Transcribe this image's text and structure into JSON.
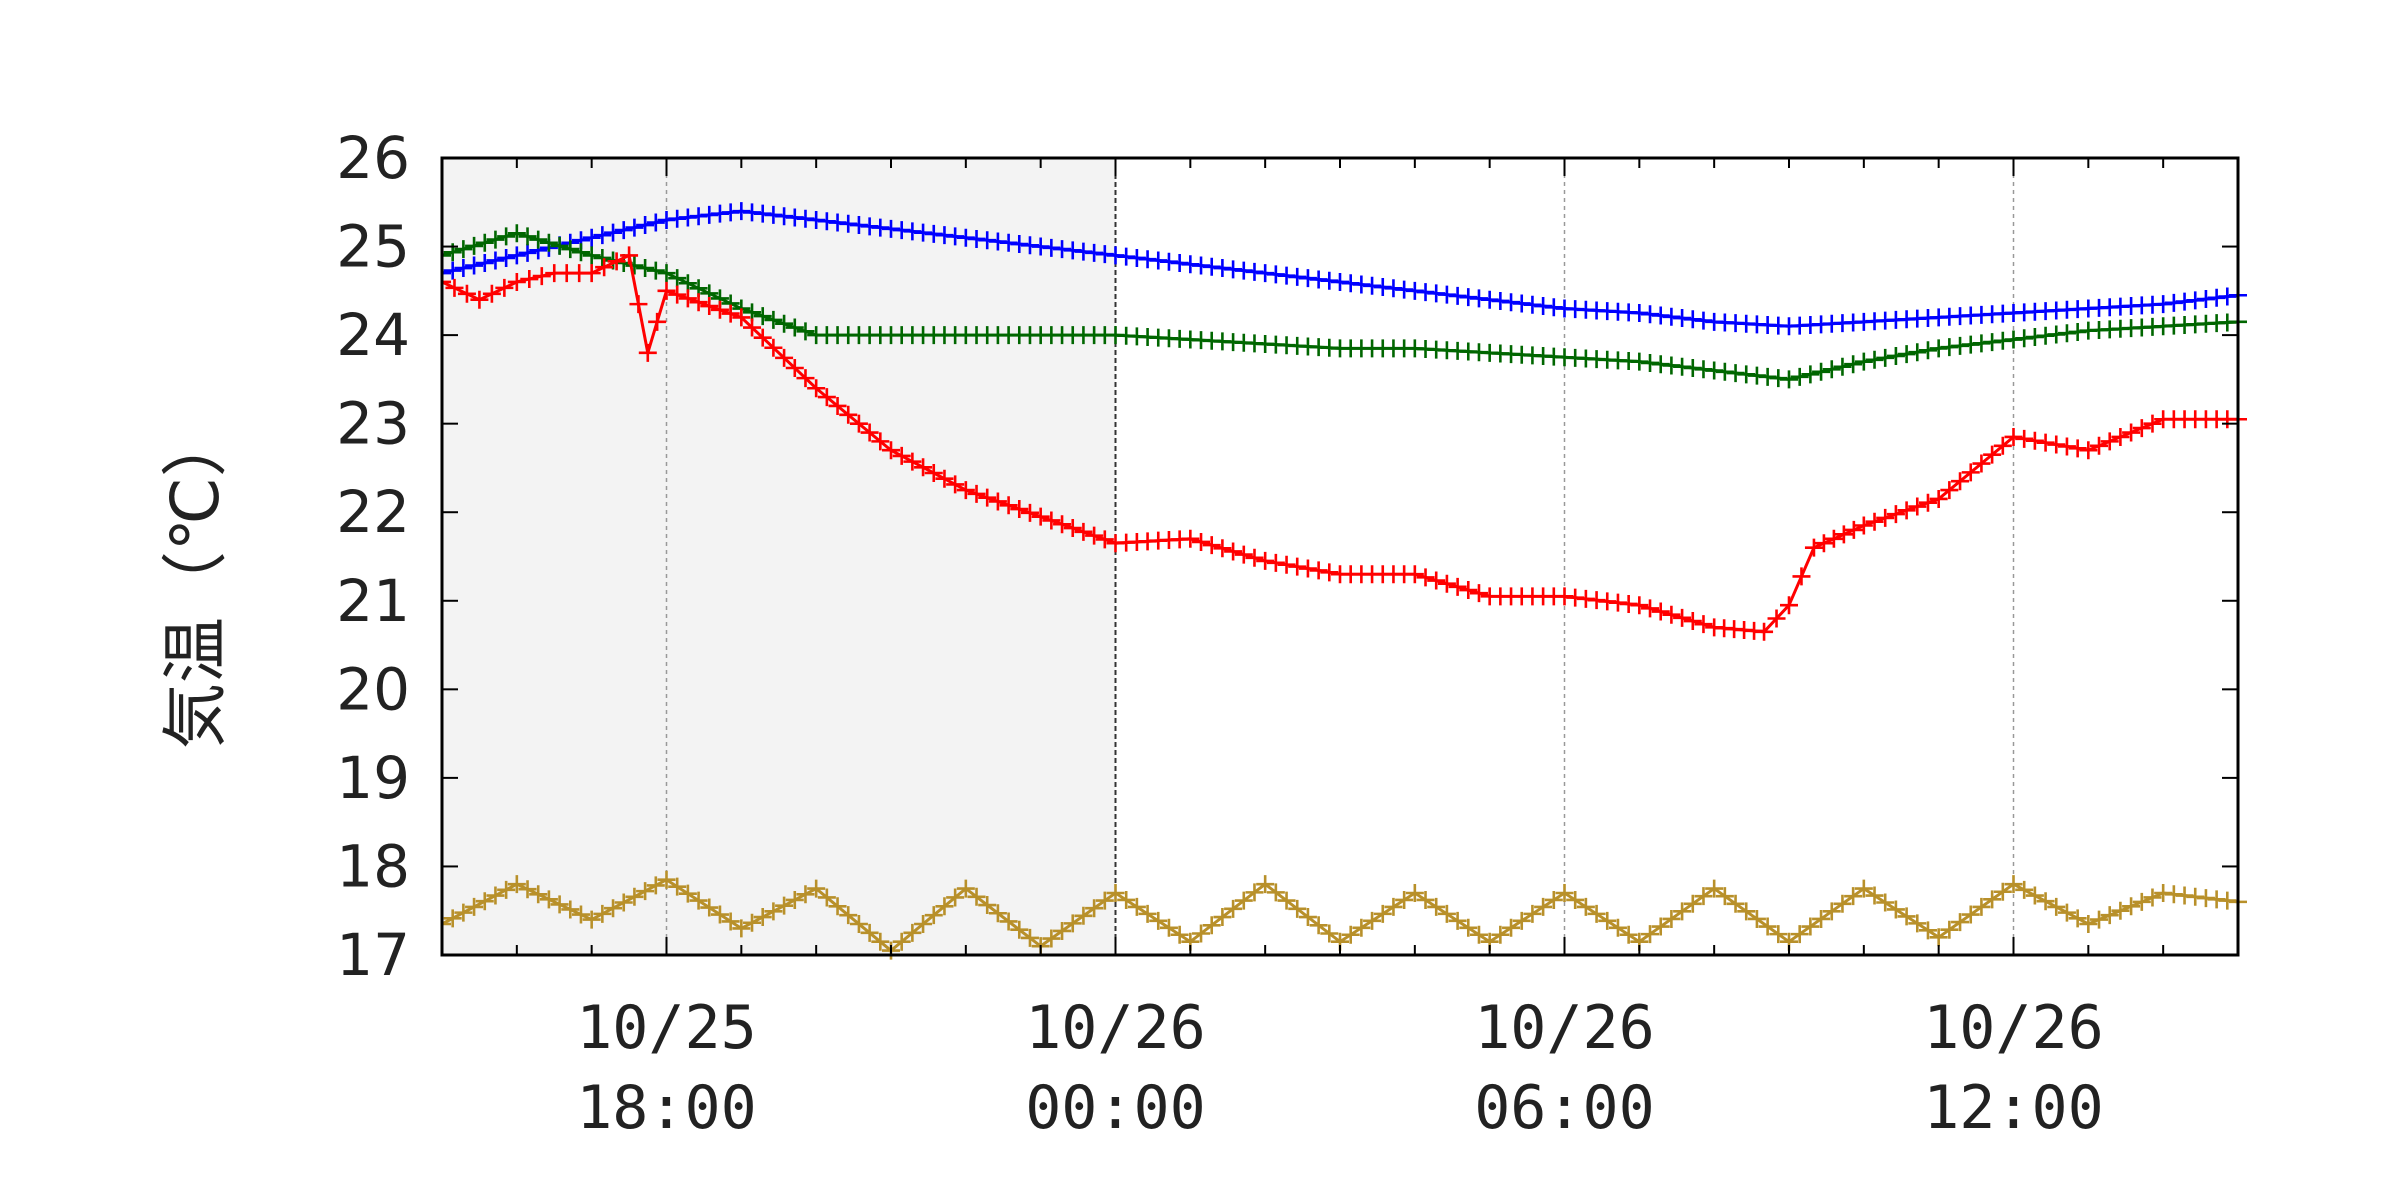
{
  "chart_data": {
    "type": "line",
    "title": "",
    "xlabel": "",
    "ylabel": "気温（℃）",
    "ylim": [
      17,
      26
    ],
    "yticks": [
      17,
      18,
      19,
      20,
      21,
      22,
      23,
      24,
      25,
      26
    ],
    "xlim": [
      "10/25 15:00",
      "10/26 15:00"
    ],
    "xticks": [
      {
        "value": "10/25 18:00",
        "line1": "10/25",
        "line2": "18:00"
      },
      {
        "value": "10/26 00:00",
        "line1": "10/26",
        "line2": "00:00"
      },
      {
        "value": "10/26 06:00",
        "line1": "10/26",
        "line2": "06:00"
      },
      {
        "value": "10/26 12:00",
        "line1": "10/26",
        "line2": "12:00"
      }
    ],
    "grid": true,
    "night_shading": {
      "from": "10/25 15:00",
      "to": "10/26 00:00",
      "color": "#f3f3f3"
    },
    "marker": "plus",
    "series": [
      {
        "color": "#0000ff",
        "points": [
          [
            "10/25 15:00",
            24.7
          ],
          [
            "10/25 16:00",
            24.9
          ],
          [
            "10/25 17:00",
            25.1
          ],
          [
            "10/25 18:00",
            25.3
          ],
          [
            "10/25 19:00",
            25.4
          ],
          [
            "10/25 20:00",
            25.3
          ],
          [
            "10/25 21:00",
            25.2
          ],
          [
            "10/25 22:00",
            25.1
          ],
          [
            "10/25 23:00",
            25.0
          ],
          [
            "10/26 00:00",
            24.9
          ],
          [
            "10/26 01:00",
            24.8
          ],
          [
            "10/26 02:00",
            24.7
          ],
          [
            "10/26 03:00",
            24.6
          ],
          [
            "10/26 04:00",
            24.5
          ],
          [
            "10/26 05:00",
            24.4
          ],
          [
            "10/26 06:00",
            24.3
          ],
          [
            "10/26 07:00",
            24.25
          ],
          [
            "10/26 08:00",
            24.15
          ],
          [
            "10/26 09:00",
            24.1
          ],
          [
            "10/26 10:00",
            24.15
          ],
          [
            "10/26 11:00",
            24.2
          ],
          [
            "10/26 12:00",
            24.25
          ],
          [
            "10/26 13:00",
            24.3
          ],
          [
            "10/26 14:00",
            24.35
          ],
          [
            "10/26 15:00",
            24.45
          ]
        ]
      },
      {
        "color": "#006600",
        "points": [
          [
            "10/25 15:00",
            24.9
          ],
          [
            "10/25 16:00",
            25.15
          ],
          [
            "10/25 17:00",
            24.9
          ],
          [
            "10/25 18:00",
            24.7
          ],
          [
            "10/25 19:00",
            24.3
          ],
          [
            "10/25 20:00",
            24.0
          ],
          [
            "10/25 21:00",
            24.0
          ],
          [
            "10/25 22:00",
            24.0
          ],
          [
            "10/25 23:00",
            24.0
          ],
          [
            "10/26 00:00",
            24.0
          ],
          [
            "10/26 01:00",
            23.95
          ],
          [
            "10/26 02:00",
            23.9
          ],
          [
            "10/26 03:00",
            23.85
          ],
          [
            "10/26 04:00",
            23.85
          ],
          [
            "10/26 05:00",
            23.8
          ],
          [
            "10/26 06:00",
            23.75
          ],
          [
            "10/26 07:00",
            23.7
          ],
          [
            "10/26 08:00",
            23.6
          ],
          [
            "10/26 09:00",
            23.5
          ],
          [
            "10/26 10:00",
            23.7
          ],
          [
            "10/26 11:00",
            23.85
          ],
          [
            "10/26 12:00",
            23.95
          ],
          [
            "10/26 13:00",
            24.05
          ],
          [
            "10/26 14:00",
            24.1
          ],
          [
            "10/26 15:00",
            24.15
          ]
        ]
      },
      {
        "color": "#ff0000",
        "points": [
          [
            "10/25 15:00",
            24.6
          ],
          [
            "10/25 15:30",
            24.4
          ],
          [
            "10/25 16:00",
            24.6
          ],
          [
            "10/25 16:30",
            24.7
          ],
          [
            "10/25 17:00",
            24.7
          ],
          [
            "10/25 17:30",
            24.9
          ],
          [
            "10/25 17:45",
            23.8
          ],
          [
            "10/25 18:00",
            24.5
          ],
          [
            "10/25 19:00",
            24.2
          ],
          [
            "10/25 20:00",
            23.4
          ],
          [
            "10/25 21:00",
            22.7
          ],
          [
            "10/25 22:00",
            22.25
          ],
          [
            "10/25 23:00",
            21.95
          ],
          [
            "10/26 00:00",
            21.65
          ],
          [
            "10/26 01:00",
            21.7
          ],
          [
            "10/26 02:00",
            21.45
          ],
          [
            "10/26 03:00",
            21.3
          ],
          [
            "10/26 04:00",
            21.3
          ],
          [
            "10/26 05:00",
            21.05
          ],
          [
            "10/26 06:00",
            21.05
          ],
          [
            "10/26 07:00",
            20.95
          ],
          [
            "10/26 08:00",
            20.7
          ],
          [
            "10/26 08:40",
            20.65
          ],
          [
            "10/26 09:00",
            20.95
          ],
          [
            "10/26 09:20",
            21.6
          ],
          [
            "10/26 10:00",
            21.85
          ],
          [
            "10/26 11:00",
            22.15
          ],
          [
            "10/26 12:00",
            22.85
          ],
          [
            "10/26 13:00",
            22.7
          ],
          [
            "10/26 14:00",
            23.05
          ],
          [
            "10/26 15:00",
            23.05
          ]
        ]
      },
      {
        "color": "#b8902a",
        "points": [
          [
            "10/25 15:00",
            17.35
          ],
          [
            "10/25 16:00",
            17.8
          ],
          [
            "10/25 17:00",
            17.4
          ],
          [
            "10/25 18:00",
            17.85
          ],
          [
            "10/25 19:00",
            17.3
          ],
          [
            "10/25 20:00",
            17.75
          ],
          [
            "10/25 21:00",
            17.05
          ],
          [
            "10/25 22:00",
            17.75
          ],
          [
            "10/25 23:00",
            17.1
          ],
          [
            "10/26 00:00",
            17.7
          ],
          [
            "10/26 01:00",
            17.15
          ],
          [
            "10/26 02:00",
            17.8
          ],
          [
            "10/26 03:00",
            17.15
          ],
          [
            "10/26 04:00",
            17.7
          ],
          [
            "10/26 05:00",
            17.15
          ],
          [
            "10/26 06:00",
            17.7
          ],
          [
            "10/26 07:00",
            17.15
          ],
          [
            "10/26 08:00",
            17.75
          ],
          [
            "10/26 09:00",
            17.15
          ],
          [
            "10/26 10:00",
            17.75
          ],
          [
            "10/26 11:00",
            17.2
          ],
          [
            "10/26 12:00",
            17.8
          ],
          [
            "10/26 13:00",
            17.35
          ],
          [
            "10/26 14:00",
            17.7
          ],
          [
            "10/26 15:00",
            17.6
          ]
        ]
      }
    ]
  }
}
